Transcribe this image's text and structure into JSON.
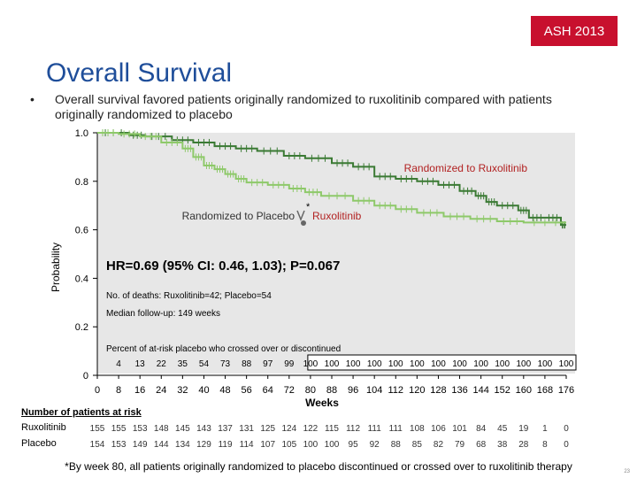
{
  "badge": "ASH 2013",
  "title": "Overall Survival",
  "bullet": {
    "symbol": "•",
    "text": "Overall survival favored patients originally randomized to ruxolitinib compared with patients originally randomized to placebo"
  },
  "footnote": "*By week 80, all patients originally randomized to placebo discontinued or crossed over to ruxolitinib therapy",
  "page_number": "23",
  "colors": {
    "ruxolitinib": "#3b7a34",
    "placebo": "#8ec96a",
    "badge": "#c8102e",
    "title": "#1f4e9a",
    "plot_bg": "#e7e7e7"
  },
  "chart_data": {
    "type": "line",
    "title": "Overall Survival",
    "xlabel": "Weeks",
    "ylabel": "Probability",
    "xlim": [
      0,
      176
    ],
    "ylim": [
      0,
      1.0
    ],
    "x_ticks": [
      0,
      8,
      16,
      24,
      32,
      40,
      48,
      56,
      64,
      72,
      80,
      88,
      96,
      104,
      112,
      120,
      128,
      136,
      144,
      152,
      160,
      168,
      176
    ],
    "y_ticks": [
      "0",
      "0.2",
      "0.4",
      "0.6",
      "0.8",
      "1.0"
    ],
    "y_tick_values": [
      0,
      0.2,
      0.4,
      0.6,
      0.8,
      1.0
    ],
    "series": [
      {
        "name": "Randomized to Ruxolitinib",
        "color": "#3b7a34",
        "steps": [
          [
            0,
            1.0
          ],
          [
            12,
            0.99
          ],
          [
            18,
            0.985
          ],
          [
            28,
            0.97
          ],
          [
            36,
            0.96
          ],
          [
            44,
            0.945
          ],
          [
            52,
            0.935
          ],
          [
            60,
            0.925
          ],
          [
            70,
            0.905
          ],
          [
            78,
            0.895
          ],
          [
            88,
            0.875
          ],
          [
            96,
            0.86
          ],
          [
            104,
            0.82
          ],
          [
            112,
            0.81
          ],
          [
            120,
            0.8
          ],
          [
            128,
            0.785
          ],
          [
            136,
            0.76
          ],
          [
            142,
            0.74
          ],
          [
            146,
            0.715
          ],
          [
            150,
            0.7
          ],
          [
            158,
            0.68
          ],
          [
            162,
            0.65
          ],
          [
            168,
            0.65
          ],
          [
            174,
            0.62
          ],
          [
            176,
            0.62
          ]
        ]
      },
      {
        "name": "Randomized to Placebo",
        "color": "#8ec96a",
        "steps": [
          [
            0,
            1.0
          ],
          [
            8,
            0.995
          ],
          [
            16,
            0.985
          ],
          [
            24,
            0.96
          ],
          [
            32,
            0.935
          ],
          [
            36,
            0.9
          ],
          [
            40,
            0.865
          ],
          [
            44,
            0.85
          ],
          [
            48,
            0.83
          ],
          [
            52,
            0.81
          ],
          [
            56,
            0.795
          ],
          [
            64,
            0.785
          ],
          [
            72,
            0.77
          ],
          [
            78,
            0.755
          ],
          [
            84,
            0.74
          ],
          [
            96,
            0.72
          ],
          [
            104,
            0.7
          ],
          [
            112,
            0.685
          ],
          [
            120,
            0.67
          ],
          [
            130,
            0.655
          ],
          [
            140,
            0.645
          ],
          [
            150,
            0.635
          ],
          [
            160,
            0.63
          ],
          [
            176,
            0.63
          ]
        ]
      }
    ],
    "annotations": {
      "rux_label": "Randomized to Ruxolitinib",
      "pbo_label": "Randomized to Placebo",
      "crossover_label": "Ruxolitinib",
      "asterisk": "*",
      "hr_text": "HR=0.69 (95% CI: 0.46, 1.03); P=0.067",
      "deaths_text": "No. of deaths: Ruxolitinib=42; Placebo=54",
      "followup_text": "Median follow-up: 149 weeks",
      "crossover_caption": "Percent of at-risk placebo who crossed over or discontinued"
    },
    "crossover_percent": {
      "x": [
        8,
        16,
        24,
        32,
        40,
        48,
        56,
        64,
        72,
        80,
        88,
        96,
        104,
        112,
        120,
        128,
        136,
        144,
        152,
        160,
        168,
        176
      ],
      "values": [
        "4",
        "13",
        "22",
        "35",
        "54",
        "73",
        "88",
        "97",
        "99",
        "100",
        "100",
        "100",
        "100",
        "100",
        "100",
        "100",
        "100",
        "100",
        "100",
        "100",
        "100",
        "100"
      ]
    },
    "at_risk": {
      "header": "Number of patients at risk",
      "x": [
        0,
        8,
        16,
        24,
        32,
        40,
        48,
        56,
        64,
        72,
        80,
        88,
        96,
        104,
        112,
        120,
        128,
        136,
        144,
        152,
        160,
        168,
        176
      ],
      "rows": [
        {
          "label": "Ruxolitinib",
          "values": [
            "155",
            "155",
            "153",
            "148",
            "145",
            "143",
            "137",
            "131",
            "125",
            "124",
            "122",
            "115",
            "112",
            "111",
            "111",
            "108",
            "106",
            "101",
            "84",
            "45",
            "19",
            "1",
            "0"
          ]
        },
        {
          "label": "Placebo",
          "values": [
            "154",
            "153",
            "149",
            "144",
            "134",
            "129",
            "119",
            "114",
            "107",
            "105",
            "100",
            "100",
            "95",
            "92",
            "88",
            "85",
            "82",
            "79",
            "68",
            "38",
            "28",
            "8",
            "0"
          ]
        }
      ]
    }
  }
}
